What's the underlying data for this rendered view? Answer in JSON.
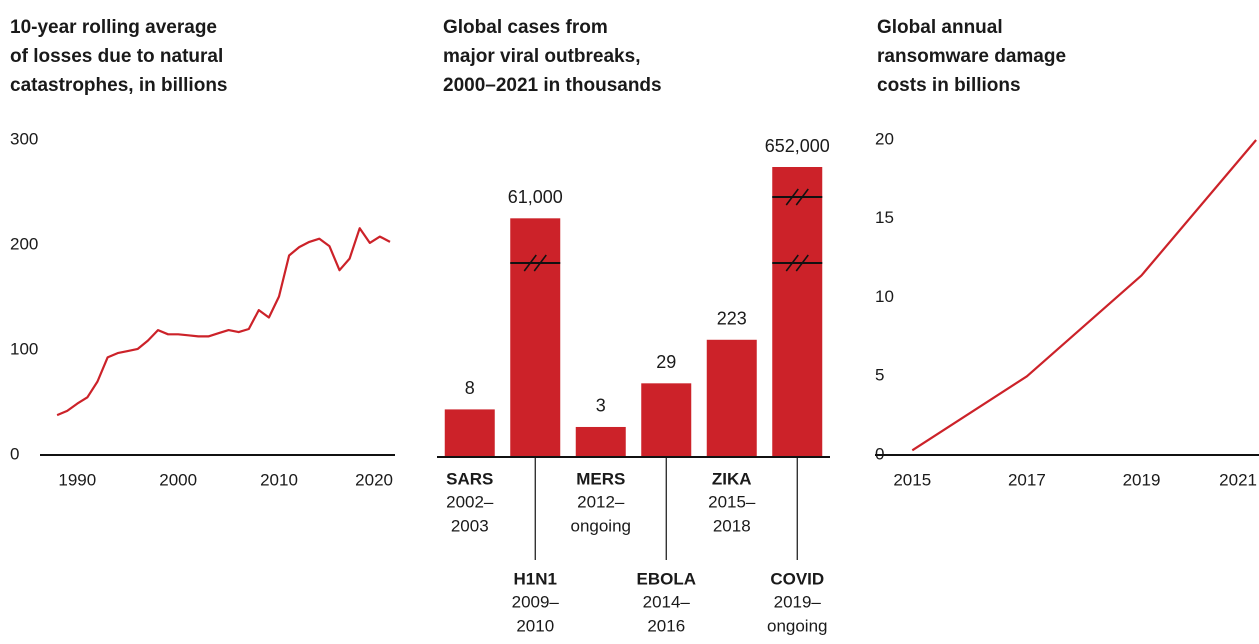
{
  "chart_data": [
    {
      "type": "line",
      "title": [
        "10-year rolling average",
        "of losses due to natural",
        "catastrophes, in billions"
      ],
      "x": [
        1988,
        1989,
        1990,
        1991,
        1992,
        1993,
        1994,
        1995,
        1996,
        1997,
        1998,
        1999,
        2000,
        2001,
        2002,
        2003,
        2004,
        2005,
        2006,
        2007,
        2008,
        2009,
        2010,
        2011,
        2012,
        2013,
        2014,
        2015,
        2016,
        2017,
        2018,
        2019,
        2020,
        2021
      ],
      "values": [
        38,
        42,
        49,
        55,
        70,
        93,
        97,
        99,
        101,
        109,
        119,
        115,
        115,
        114,
        113,
        113,
        116,
        119,
        117,
        120,
        138,
        131,
        151,
        190,
        198,
        203,
        206,
        199,
        176,
        187,
        216,
        202,
        208,
        203
      ],
      "color": "#cc2229",
      "xlim": [
        1986.3,
        2021.5
      ],
      "xticks": [
        1990,
        2000,
        2010,
        2020
      ],
      "ylim": [
        0,
        300
      ],
      "yticks": [
        0,
        100,
        200,
        300
      ]
    },
    {
      "type": "bar",
      "title": [
        "Global cases from",
        "major viral outbreaks,",
        "2000–2021 in thousands"
      ],
      "categories": [
        "SARS",
        "H1N1",
        "MERS",
        "EBOLA",
        "ZIKA",
        "COVID"
      ],
      "periods": [
        [
          "2002–",
          "2003"
        ],
        [
          "2009–",
          "2010"
        ],
        [
          "2012–",
          "ongoing"
        ],
        [
          "2014–",
          "2016"
        ],
        [
          "2015–",
          "2018"
        ],
        [
          "2019–",
          "ongoing"
        ]
      ],
      "values": [
        8,
        61000,
        3,
        29,
        223,
        652000
      ],
      "value_labels": [
        "8",
        "61,000",
        "3",
        "29",
        "223",
        "652,000"
      ],
      "color": "#cc2229"
    },
    {
      "type": "line",
      "title": [
        "Global annual",
        "ransomware damage",
        "costs in billions"
      ],
      "x": [
        2015,
        2017,
        2019,
        2021
      ],
      "values": [
        0.3,
        5,
        11.4,
        20
      ],
      "color": "#cc2229",
      "xlim": [
        2014.35,
        2021.05
      ],
      "xticks": [
        2015,
        2017,
        2019,
        2021
      ],
      "ylim": [
        0,
        20
      ],
      "yticks": [
        0,
        5,
        10,
        15,
        20
      ]
    }
  ]
}
